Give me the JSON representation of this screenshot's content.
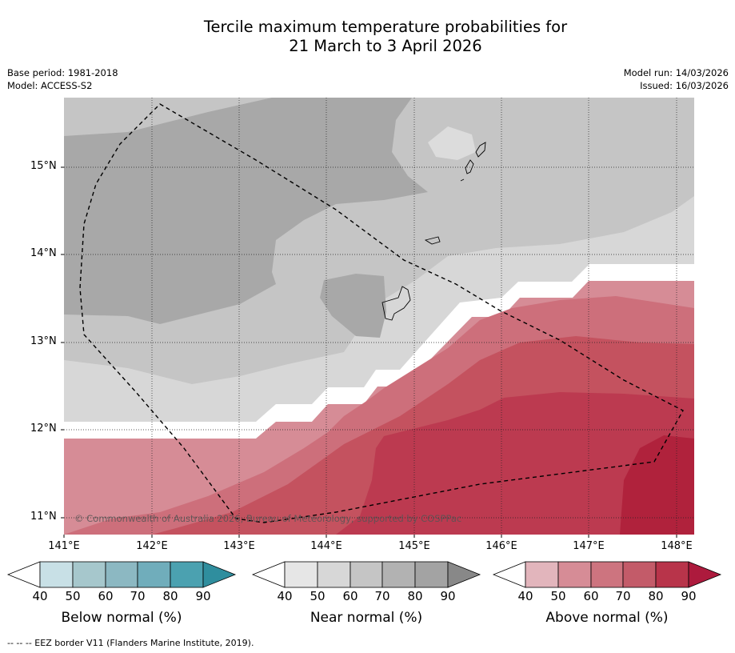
{
  "title": {
    "line1": "Tercile maximum temperature probabilities for",
    "line2": "21 March to 3 April 2026"
  },
  "meta": {
    "base_period": "Base period: 1981-2018",
    "model": "Model: ACCESS-S2",
    "model_run": "Model run: 14/03/2026",
    "issued": "Issued: 16/03/2026"
  },
  "map": {
    "lat_labels": [
      "15°N",
      "14°N",
      "13°N",
      "12°N",
      "11°N"
    ],
    "lon_labels": [
      "141°E",
      "142°E",
      "143°E",
      "144°E",
      "145°E",
      "146°E",
      "147°E",
      "148°E"
    ],
    "copyright": "© Commonwealth of Australia 2026, Bureau of Meteorology, supported by COSPPac"
  },
  "colorbars": [
    {
      "label": "Below normal (%)",
      "ticks": [
        "40",
        "50",
        "60",
        "70",
        "80",
        "90"
      ],
      "colors": [
        "#ffffff",
        "#c8e0e6",
        "#a6c7cc",
        "#8cb8c2",
        "#70adbb",
        "#4ba1b0",
        "#2f8e9e"
      ]
    },
    {
      "label": "Near normal (%)",
      "ticks": [
        "40",
        "50",
        "60",
        "70",
        "80",
        "90"
      ],
      "colors": [
        "#ffffff",
        "#e6e6e6",
        "#d7d7d7",
        "#c5c5c5",
        "#b2b2b2",
        "#a3a3a3",
        "#888888"
      ]
    },
    {
      "label": "Above normal (%)",
      "ticks": [
        "40",
        "50",
        "60",
        "70",
        "80",
        "90"
      ],
      "colors": [
        "#ffffff",
        "#e2b5bc",
        "#d68c96",
        "#cd747f",
        "#c35b69",
        "#b8344a",
        "#ad1a3d"
      ]
    }
  ],
  "footer": "--  --  -- EEZ border V11 (Flanders Marine Institute, 2019)."
}
